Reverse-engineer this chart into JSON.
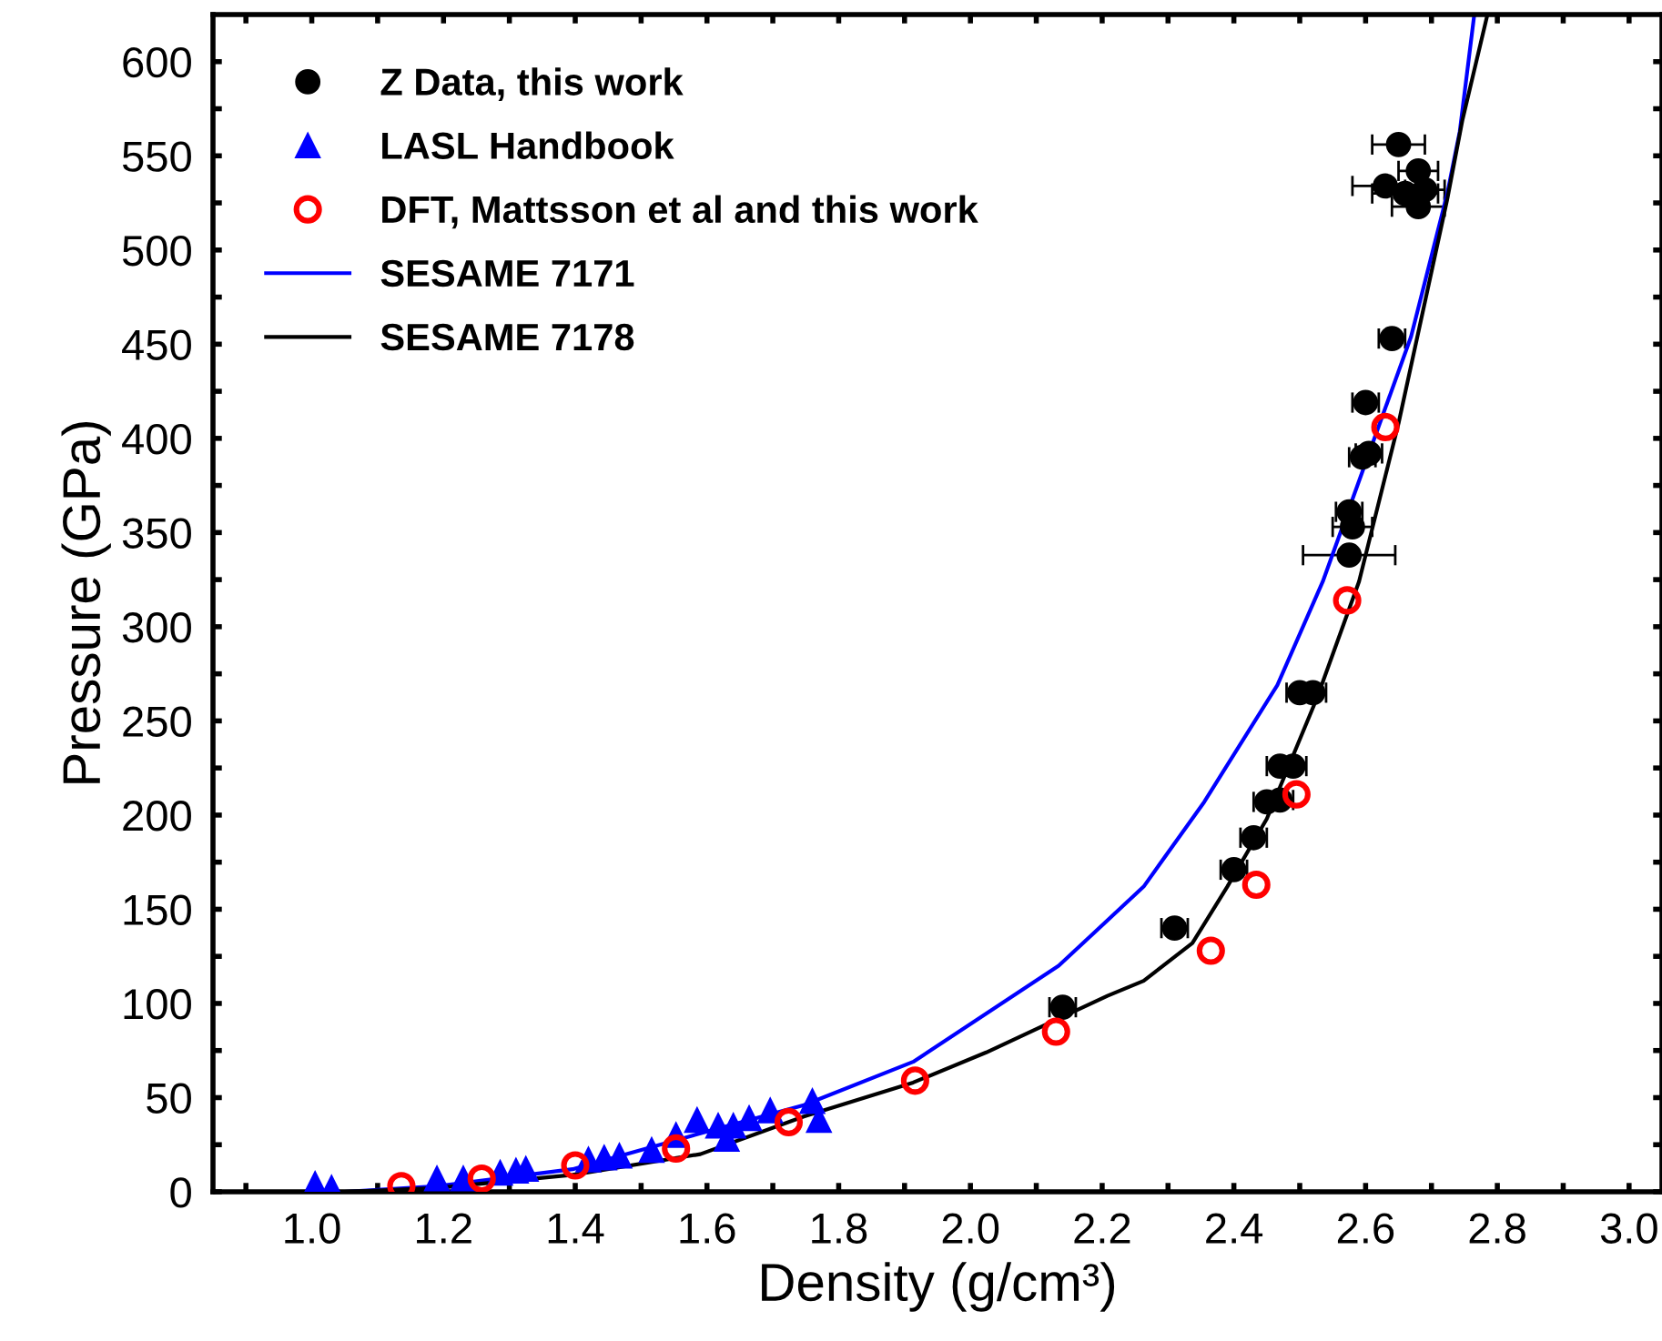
{
  "chart_data": {
    "type": "scatter",
    "xlabel": "Density (g/cm³)",
    "ylabel": "Pressure (GPa)",
    "xlim": [
      0.85,
      3.05
    ],
    "ylim": [
      0,
      625
    ],
    "xticks": [
      {
        "value": 0.9,
        "label": null
      },
      {
        "value": 1.0,
        "label": "1.0"
      },
      {
        "value": 1.1,
        "label": null
      },
      {
        "value": 1.2,
        "label": "1.2"
      },
      {
        "value": 1.3,
        "label": null
      },
      {
        "value": 1.4,
        "label": "1.4"
      },
      {
        "value": 1.5,
        "label": null
      },
      {
        "value": 1.6,
        "label": "1.6"
      },
      {
        "value": 1.7,
        "label": null
      },
      {
        "value": 1.8,
        "label": "1.8"
      },
      {
        "value": 1.9,
        "label": null
      },
      {
        "value": 2.0,
        "label": "2.0"
      },
      {
        "value": 2.1,
        "label": null
      },
      {
        "value": 2.2,
        "label": "2.2"
      },
      {
        "value": 2.3,
        "label": null
      },
      {
        "value": 2.4,
        "label": "2.4"
      },
      {
        "value": 2.5,
        "label": null
      },
      {
        "value": 2.6,
        "label": "2.6"
      },
      {
        "value": 2.7,
        "label": null
      },
      {
        "value": 2.8,
        "label": "2.8"
      },
      {
        "value": 2.9,
        "label": null
      },
      {
        "value": 3.0,
        "label": "3.0"
      }
    ],
    "yticks": [
      0,
      {
        "value": 25,
        "label": null
      },
      50,
      {
        "value": 75,
        "label": null
      },
      100,
      {
        "value": 125,
        "label": null
      },
      150,
      {
        "value": 175,
        "label": null
      },
      200,
      {
        "value": 225,
        "label": null
      },
      250,
      {
        "value": 275,
        "label": null
      },
      300,
      {
        "value": 325,
        "label": null
      },
      350,
      {
        "value": 375,
        "label": null
      },
      400,
      {
        "value": 425,
        "label": null
      },
      450,
      {
        "value": 475,
        "label": null
      },
      500,
      {
        "value": 525,
        "label": null
      },
      550,
      {
        "value": 575,
        "label": null
      },
      600
    ],
    "grid": false,
    "legend": "top left",
    "series": [
      {
        "name": "Z Data, this work",
        "color": "#000000",
        "marker": "circle",
        "x": [
          2.14,
          2.31,
          2.4,
          2.43,
          2.45,
          2.47,
          2.47,
          2.49,
          2.5,
          2.52,
          2.575,
          2.58,
          2.575,
          2.595,
          2.605,
          2.6,
          2.64,
          2.65,
          2.68,
          2.63,
          2.66,
          2.68,
          2.69
        ],
        "values": [
          98,
          140,
          171,
          188,
          207,
          208,
          226,
          226,
          265,
          265,
          338,
          353,
          361,
          390,
          392,
          419,
          453,
          556,
          542,
          534,
          530,
          523,
          532
        ],
        "xerrors": [
          0.02,
          0.02,
          0.02,
          0.02,
          0.02,
          0.02,
          0.02,
          0.02,
          0.02,
          0.02,
          0.07,
          0.03,
          0.02,
          0.02,
          0.02,
          0.02,
          0.02,
          0.04,
          0.03,
          0.05,
          0.05,
          0.04,
          0.03
        ]
      },
      {
        "name": "LASL Handbook",
        "color": "#0000ff",
        "marker": "triangle",
        "x": [
          1.005,
          1.03,
          1.19,
          1.23,
          1.286,
          1.31,
          1.325,
          1.42,
          1.444,
          1.467,
          1.516,
          1.553,
          1.585,
          1.617,
          1.63,
          1.64,
          1.664,
          1.696,
          1.76,
          1.77
        ],
        "values": [
          4,
          2,
          7,
          7,
          10,
          11,
          12,
          17,
          18,
          19,
          22,
          30,
          38,
          35,
          28,
          35,
          39,
          43,
          48,
          38
        ]
      },
      {
        "name": "DFT, Mattsson et al and this work",
        "color": "#ff0000",
        "marker": "circle_open",
        "x": [
          1.136,
          1.258,
          1.4,
          1.553,
          1.724,
          1.916,
          2.13,
          2.365,
          2.434,
          2.495,
          2.572,
          2.63
        ],
        "values": [
          3,
          7,
          14,
          23,
          37,
          59,
          85,
          128,
          163,
          211,
          314,
          406
        ]
      },
      {
        "name": "SESAME 7171",
        "color": "#0000ff",
        "type": "line",
        "marker": "none",
        "x": [
          1.05,
          1.19,
          1.396,
          1.59,
          1.747,
          1.913,
          2.134,
          2.263,
          2.355,
          2.466,
          2.535,
          2.669,
          2.724,
          2.743,
          2.765
        ],
        "values": [
          0,
          3,
          12,
          31,
          46,
          69,
          120,
          162,
          207,
          269,
          324,
          454,
          530,
          563,
          625
        ]
      },
      {
        "name": "SESAME 7178",
        "color": "#000000",
        "type": "line",
        "marker": "none",
        "x": [
          1.05,
          1.19,
          1.396,
          1.59,
          1.747,
          1.913,
          2.024,
          2.134,
          2.208,
          2.263,
          2.337,
          2.39,
          2.45,
          2.526,
          2.59,
          2.65,
          2.724,
          2.747,
          2.785
        ],
        "values": [
          0,
          2,
          9,
          20,
          40,
          58,
          74,
          92,
          104,
          112,
          132,
          162,
          198,
          262,
          324,
          408,
          527,
          569,
          625
        ]
      }
    ]
  }
}
